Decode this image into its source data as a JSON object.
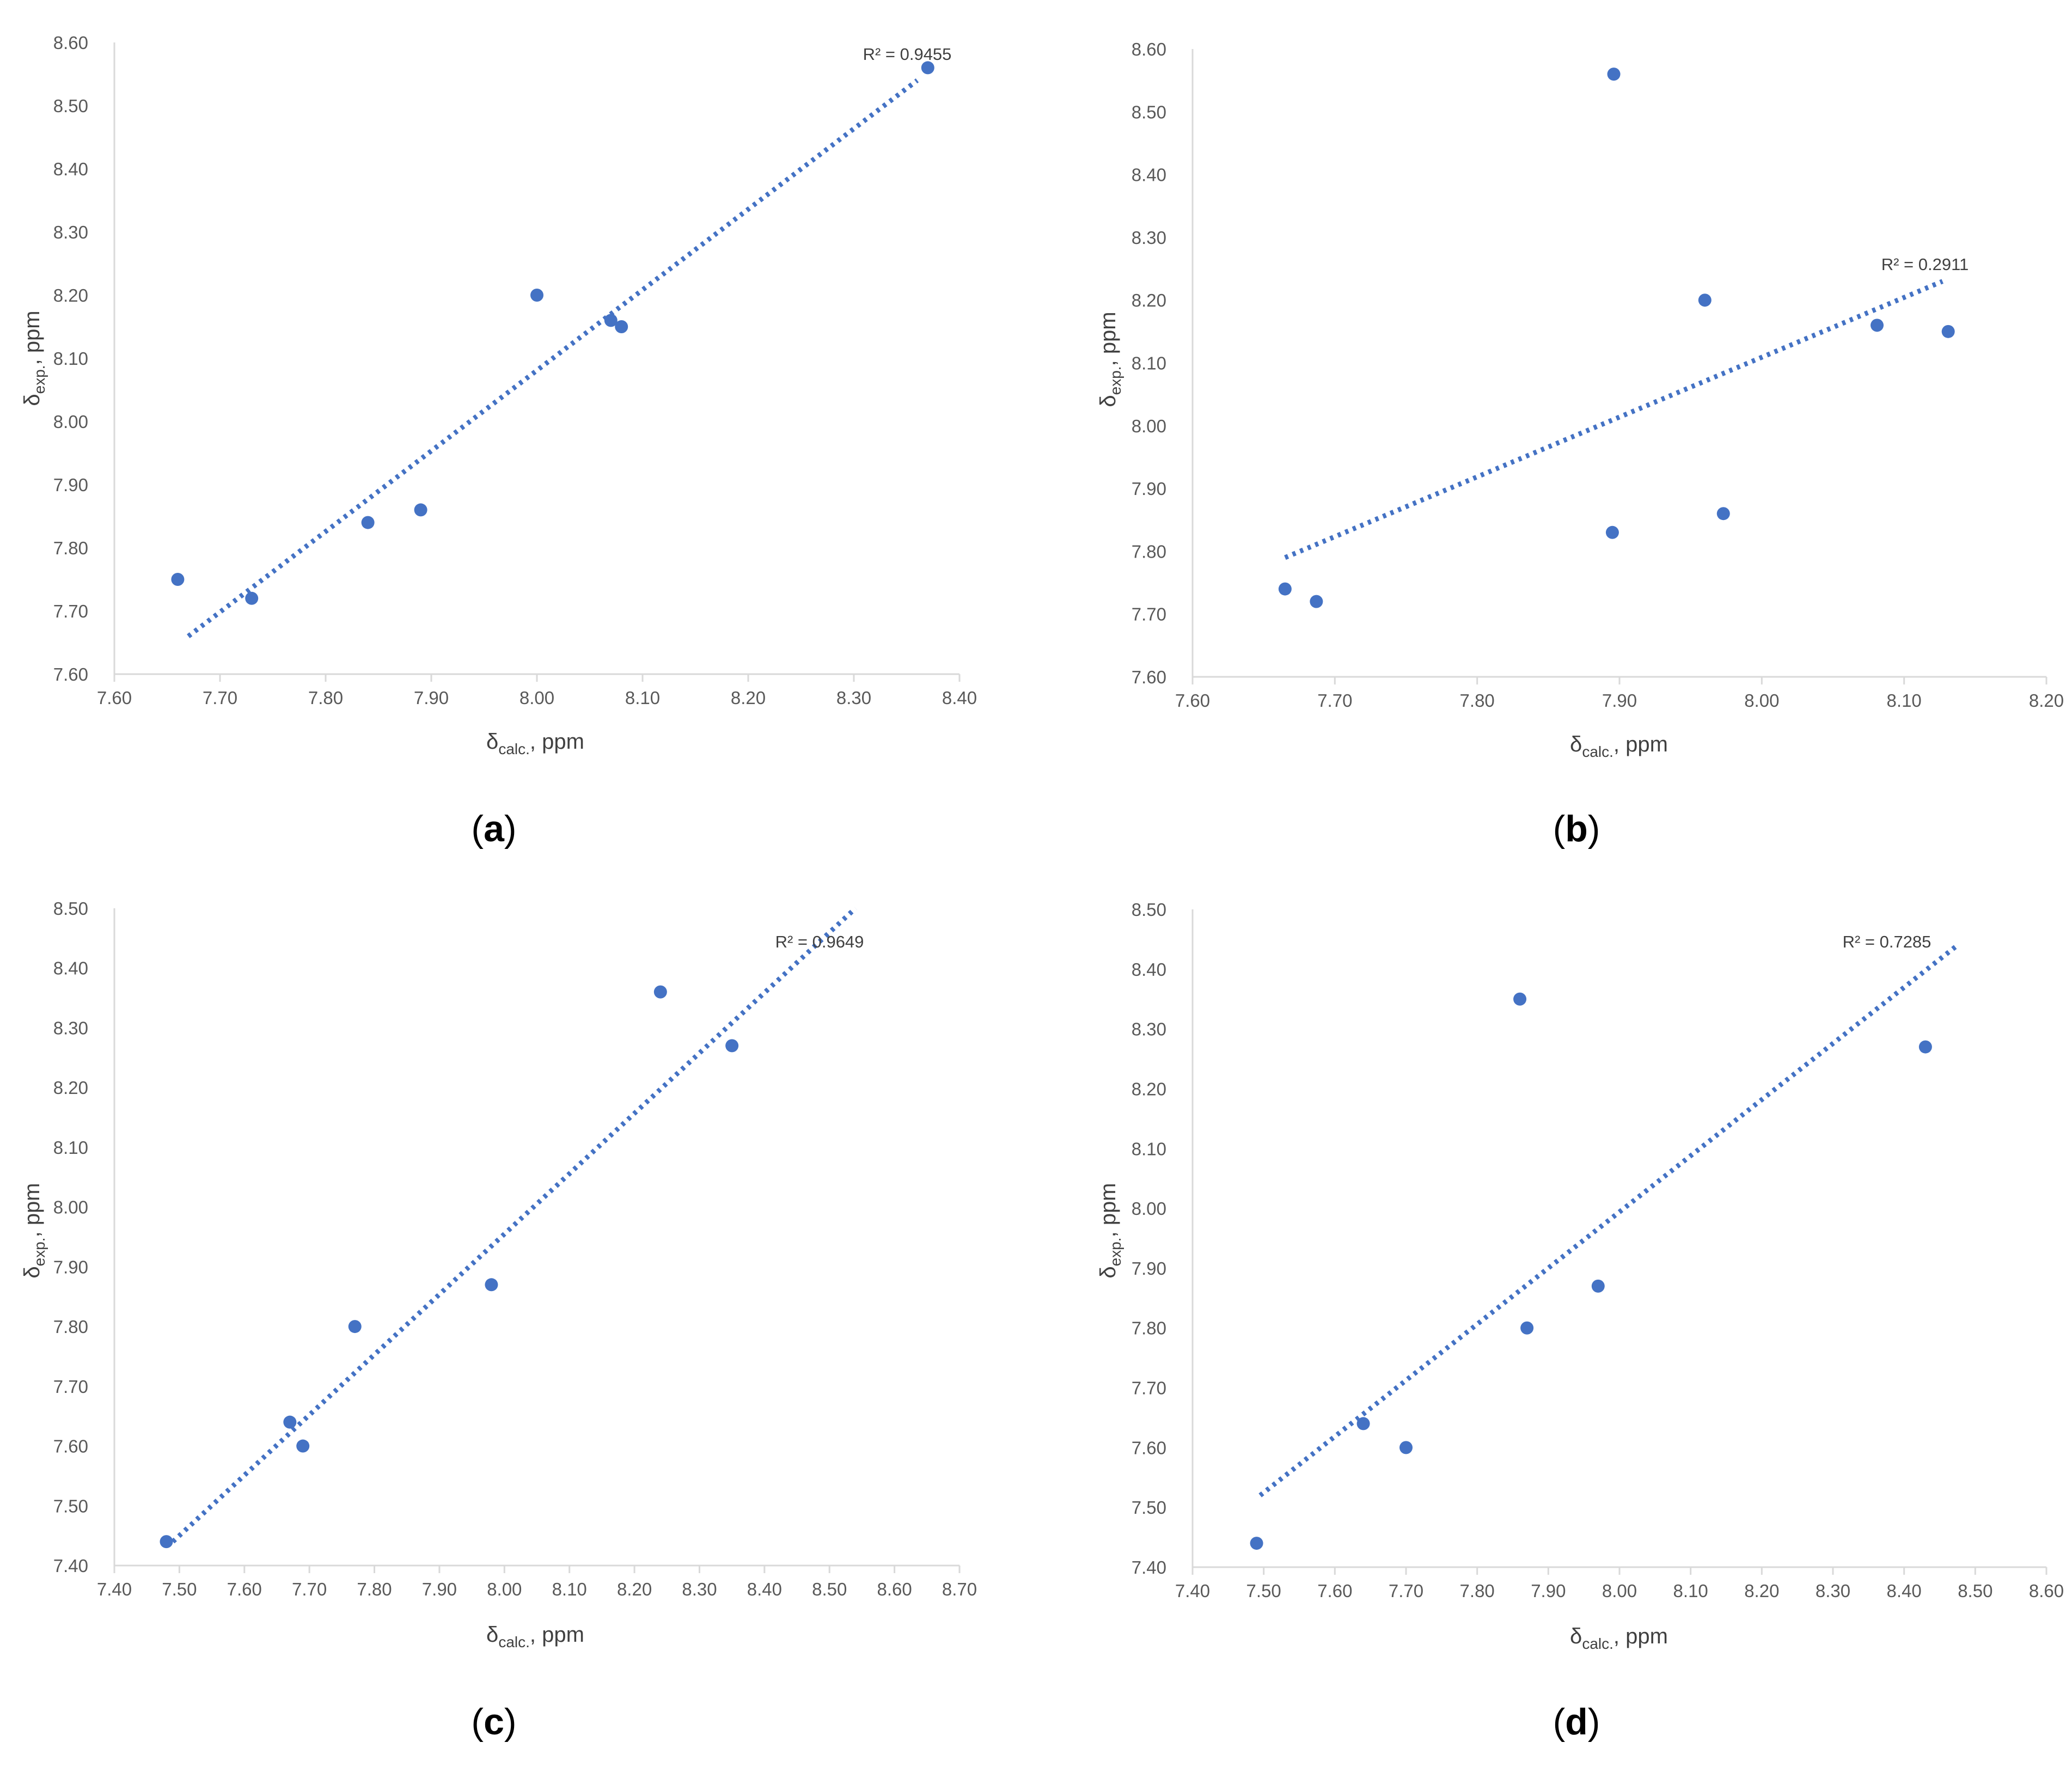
{
  "figure": {
    "marker_color": "#4472c4",
    "trend_color": "#4472c4",
    "axis_color": "#d9d9d9",
    "text_color": "#595959"
  },
  "chart_data": [
    {
      "type": "scatter",
      "panel_label": "a",
      "xlabel_main": "δ",
      "xlabel_sub": "calc.",
      "xlabel_suffix": ", ppm",
      "ylabel_main": "δ",
      "ylabel_sub": "exp.",
      "ylabel_suffix": ", ppm",
      "xlim": [
        7.6,
        8.4
      ],
      "xstep": 0.1,
      "ylim": [
        7.6,
        8.6
      ],
      "ystep": 0.1,
      "x": [
        7.66,
        7.73,
        7.84,
        7.89,
        8.0,
        8.07,
        8.08,
        8.37
      ],
      "y": [
        7.75,
        7.72,
        7.84,
        7.86,
        8.2,
        8.16,
        8.15,
        8.56
      ],
      "trendline": {
        "type": "linear",
        "x": [
          7.67,
          8.36
        ],
        "y": [
          7.66,
          8.54
        ]
      },
      "r2_label": "R² = 0.9455"
    },
    {
      "type": "scatter",
      "panel_label": "b",
      "xlabel_main": "δ",
      "xlabel_sub": "calc.",
      "xlabel_suffix": ", ppm",
      "ylabel_main": "δ",
      "ylabel_sub": "exp.",
      "ylabel_suffix": ", ppm",
      "xlim": [
        7.6,
        8.2
      ],
      "xstep": 0.1,
      "ylim": [
        7.6,
        8.6
      ],
      "ystep": 0.1,
      "x": [
        7.665,
        7.687,
        7.895,
        7.896,
        7.96,
        7.973,
        8.081,
        8.131
      ],
      "y": [
        7.74,
        7.72,
        7.83,
        8.56,
        8.2,
        7.86,
        8.16,
        8.15
      ],
      "trendline": {
        "type": "linear",
        "x": [
          7.665,
          8.127
        ],
        "y": [
          7.79,
          8.23
        ]
      },
      "r2_label": "R² = 0.2911"
    },
    {
      "type": "scatter",
      "panel_label": "c",
      "xlabel_main": "δ",
      "xlabel_sub": "calc.",
      "xlabel_suffix": ", ppm",
      "ylabel_main": "δ",
      "ylabel_sub": "exp.",
      "ylabel_suffix": ", ppm",
      "xlim": [
        7.4,
        8.7
      ],
      "xstep": 0.1,
      "ylim": [
        7.4,
        8.5
      ],
      "ystep": 0.1,
      "x": [
        7.48,
        7.67,
        7.69,
        7.77,
        7.98,
        8.24,
        8.35
      ],
      "y": [
        7.44,
        7.64,
        7.6,
        7.8,
        7.87,
        8.36,
        8.27
      ],
      "trendline": {
        "type": "linear",
        "x": [
          7.49,
          8.54
        ],
        "y": [
          7.44,
          8.5
        ]
      },
      "r2_label": "R² = 0.9649"
    },
    {
      "type": "scatter",
      "panel_label": "d",
      "xlabel_main": "δ",
      "xlabel_sub": "calc.",
      "xlabel_suffix": ", ppm",
      "ylabel_main": "δ",
      "ylabel_sub": "exp.",
      "ylabel_suffix": ", ppm",
      "xlim": [
        7.4,
        8.6
      ],
      "xstep": 0.1,
      "ylim": [
        7.4,
        8.5
      ],
      "ystep": 0.1,
      "x": [
        7.49,
        7.64,
        7.7,
        7.86,
        7.87,
        7.97,
        8.43
      ],
      "y": [
        7.44,
        7.64,
        7.6,
        8.35,
        7.8,
        7.87,
        8.27
      ],
      "trendline": {
        "type": "linear",
        "x": [
          7.495,
          8.475
        ],
        "y": [
          7.52,
          8.44
        ]
      },
      "r2_label": "R² = 0.7285"
    }
  ]
}
